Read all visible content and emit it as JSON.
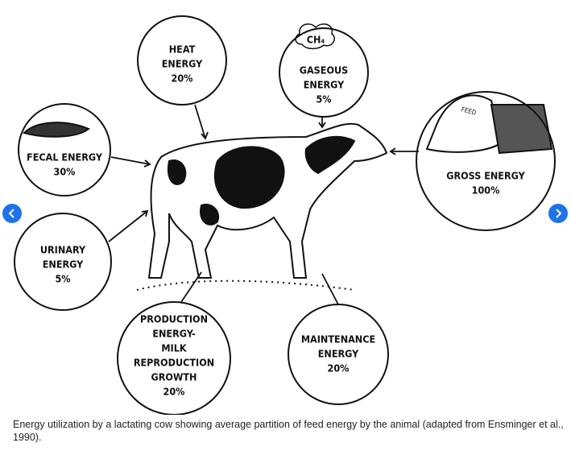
{
  "diagram": {
    "nodes": [
      {
        "label": [
          "HEAT",
          "ENERGY"
        ],
        "share": "20%"
      },
      {
        "formula": "CH₄",
        "label": [
          "GASEOUS",
          "ENERGY"
        ],
        "share": "5%"
      },
      {
        "label": [
          "FECAL ENERGY"
        ],
        "share": "30%"
      },
      {
        "image_label": "FEED",
        "label": [
          "GROSS ENERGY"
        ],
        "share": "100%"
      },
      {
        "label": [
          "URINARY",
          "ENERGY"
        ],
        "share": "5%"
      },
      {
        "label": [
          "PRODUCTION",
          "ENERGY-",
          "MILK",
          "REPRODUCTION",
          "GROWTH"
        ],
        "share": "20%"
      },
      {
        "label": [
          "MAINTENANCE",
          "ENERGY"
        ],
        "share": "20%"
      }
    ],
    "caption": "Energy utilization by a lactating cow showing average partition of feed energy by the animal (adapted from Ensminger et al., 1990)."
  }
}
